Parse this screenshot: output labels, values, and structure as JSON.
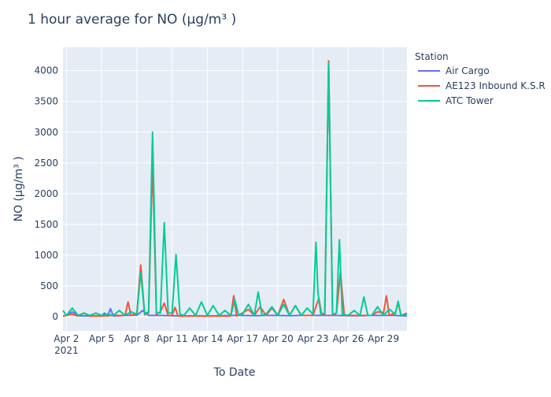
{
  "chart_data": {
    "type": "line",
    "title": "1 hour average for NO (µg/m³ )",
    "xlabel": "To Date",
    "ylabel": "NO (µg/m³ )",
    "legend": {
      "title": "Station",
      "position": "right"
    },
    "x_range": [
      "2021-04-01 17:00",
      "2021-05-01 00:00"
    ],
    "ylim": [
      -230,
      4380
    ],
    "grid": true,
    "x_ticks": [
      {
        "date": "2021-04-02",
        "label": "Apr 2",
        "sublabel": "2021"
      },
      {
        "date": "2021-04-05",
        "label": "Apr 5",
        "sublabel": ""
      },
      {
        "date": "2021-04-08",
        "label": "Apr 8",
        "sublabel": ""
      },
      {
        "date": "2021-04-11",
        "label": "Apr 11",
        "sublabel": ""
      },
      {
        "date": "2021-04-14",
        "label": "Apr 14",
        "sublabel": ""
      },
      {
        "date": "2021-04-17",
        "label": "Apr 17",
        "sublabel": ""
      },
      {
        "date": "2021-04-20",
        "label": "Apr 20",
        "sublabel": ""
      },
      {
        "date": "2021-04-23",
        "label": "Apr 23",
        "sublabel": ""
      },
      {
        "date": "2021-04-26",
        "label": "Apr 26",
        "sublabel": ""
      },
      {
        "date": "2021-04-29",
        "label": "Apr 29",
        "sublabel": ""
      }
    ],
    "y_ticks": [
      0,
      500,
      1000,
      1500,
      2000,
      2500,
      3000,
      3500,
      4000
    ],
    "series": [
      {
        "name": "Air Cargo",
        "color": "#636efa",
        "points": [
          [
            "2021-04-01 17:00",
            10
          ],
          [
            "2021-04-02 00:00",
            20
          ],
          [
            "2021-04-02 12:00",
            80
          ],
          [
            "2021-04-03 00:00",
            15
          ],
          [
            "2021-04-04 00:00",
            10
          ],
          [
            "2021-04-05 00:00",
            15
          ],
          [
            "2021-04-05 06:00",
            60
          ],
          [
            "2021-04-05 12:00",
            10
          ],
          [
            "2021-04-05 18:00",
            130
          ],
          [
            "2021-04-06 00:00",
            10
          ],
          [
            "2021-04-07 00:00",
            20
          ],
          [
            "2021-04-08 00:00",
            25
          ],
          [
            "2021-04-08 12:00",
            100
          ],
          [
            "2021-04-09 00:00",
            20
          ],
          [
            "2021-04-10 00:00",
            20
          ],
          [
            "2021-04-11 00:00",
            15
          ],
          [
            "2021-04-12 00:00",
            10
          ],
          [
            "2021-04-13 00:00",
            15
          ],
          [
            "2021-04-14 00:00",
            10
          ],
          [
            "2021-04-15 00:00",
            15
          ],
          [
            "2021-04-16 00:00",
            20
          ],
          [
            "2021-04-17 00:00",
            20
          ],
          [
            "2021-04-18 00:00",
            15
          ],
          [
            "2021-04-19 00:00",
            20
          ],
          [
            "2021-04-20 00:00",
            20
          ],
          [
            "2021-04-21 00:00",
            15
          ],
          [
            "2021-04-22 00:00",
            20
          ],
          [
            "2021-04-23 00:00",
            20
          ],
          [
            "2021-04-24 00:00",
            20
          ],
          [
            "2021-04-25 00:00",
            20
          ],
          [
            "2021-04-26 00:00",
            15
          ],
          [
            "2021-04-27 00:00",
            15
          ],
          [
            "2021-04-28 00:00",
            20
          ],
          [
            "2021-04-29 00:00",
            20
          ],
          [
            "2021-04-30 00:00",
            20
          ],
          [
            "2021-05-01 00:00",
            10
          ]
        ]
      },
      {
        "name": "AE123 Inbound K.S.R",
        "color": "#ef553b",
        "points": [
          [
            "2021-04-01 17:00",
            10
          ],
          [
            "2021-04-02 12:00",
            40
          ],
          [
            "2021-04-03 00:00",
            10
          ],
          [
            "2021-04-03 12:00",
            60
          ],
          [
            "2021-04-04 00:00",
            10
          ],
          [
            "2021-04-05 00:00",
            10
          ],
          [
            "2021-04-06 00:00",
            20
          ],
          [
            "2021-04-07 00:00",
            20
          ],
          [
            "2021-04-07 06:00",
            240
          ],
          [
            "2021-04-07 12:00",
            20
          ],
          [
            "2021-04-08 00:00",
            60
          ],
          [
            "2021-04-08 08:00",
            840
          ],
          [
            "2021-04-08 16:00",
            30
          ],
          [
            "2021-04-09 00:00",
            60
          ],
          [
            "2021-04-09 08:00",
            2550
          ],
          [
            "2021-04-09 16:00",
            40
          ],
          [
            "2021-04-10 00:00",
            80
          ],
          [
            "2021-04-10 08:00",
            220
          ],
          [
            "2021-04-10 16:00",
            20
          ],
          [
            "2021-04-11 00:00",
            20
          ],
          [
            "2021-04-11 06:00",
            150
          ],
          [
            "2021-04-11 12:00",
            10
          ],
          [
            "2021-04-12 00:00",
            10
          ],
          [
            "2021-04-13 00:00",
            10
          ],
          [
            "2021-04-14 00:00",
            10
          ],
          [
            "2021-04-15 00:00",
            10
          ],
          [
            "2021-04-16 00:00",
            10
          ],
          [
            "2021-04-16 06:00",
            340
          ],
          [
            "2021-04-16 12:00",
            10
          ],
          [
            "2021-04-17 00:00",
            60
          ],
          [
            "2021-04-17 12:00",
            120
          ],
          [
            "2021-04-18 00:00",
            20
          ],
          [
            "2021-04-18 12:00",
            160
          ],
          [
            "2021-04-19 00:00",
            20
          ],
          [
            "2021-04-19 12:00",
            140
          ],
          [
            "2021-04-20 00:00",
            20
          ],
          [
            "2021-04-20 12:00",
            280
          ],
          [
            "2021-04-21 00:00",
            20
          ],
          [
            "2021-04-21 12:00",
            180
          ],
          [
            "2021-04-22 00:00",
            20
          ],
          [
            "2021-04-23 00:00",
            20
          ],
          [
            "2021-04-23 12:00",
            300
          ],
          [
            "2021-04-23 18:00",
            20
          ],
          [
            "2021-04-24 00:00",
            40
          ],
          [
            "2021-04-24 08:00",
            4160
          ],
          [
            "2021-04-24 16:00",
            20
          ],
          [
            "2021-04-25 00:00",
            60
          ],
          [
            "2021-04-25 08:00",
            720
          ],
          [
            "2021-04-25 16:00",
            20
          ],
          [
            "2021-04-26 00:00",
            20
          ],
          [
            "2021-04-27 00:00",
            20
          ],
          [
            "2021-04-28 00:00",
            20
          ],
          [
            "2021-04-28 12:00",
            80
          ],
          [
            "2021-04-29 00:00",
            60
          ],
          [
            "2021-04-29 06:00",
            340
          ],
          [
            "2021-04-29 12:00",
            20
          ],
          [
            "2021-04-30 00:00",
            60
          ],
          [
            "2021-04-30 06:00",
            220
          ],
          [
            "2021-04-30 12:00",
            20
          ],
          [
            "2021-05-01 00:00",
            60
          ]
        ]
      },
      {
        "name": "ATC Tower",
        "color": "#00cc96",
        "points": [
          [
            "2021-04-01 17:00",
            100
          ],
          [
            "2021-04-02 00:00",
            20
          ],
          [
            "2021-04-02 06:00",
            80
          ],
          [
            "2021-04-02 12:00",
            140
          ],
          [
            "2021-04-03 00:00",
            20
          ],
          [
            "2021-04-03 12:00",
            60
          ],
          [
            "2021-04-04 00:00",
            20
          ],
          [
            "2021-04-04 12:00",
            60
          ],
          [
            "2021-04-05 00:00",
            20
          ],
          [
            "2021-04-05 12:00",
            40
          ],
          [
            "2021-04-06 00:00",
            20
          ],
          [
            "2021-04-06 12:00",
            100
          ],
          [
            "2021-04-07 00:00",
            20
          ],
          [
            "2021-04-07 12:00",
            80
          ],
          [
            "2021-04-08 00:00",
            40
          ],
          [
            "2021-04-08 08:00",
            720
          ],
          [
            "2021-04-08 16:00",
            40
          ],
          [
            "2021-04-09 00:00",
            80
          ],
          [
            "2021-04-09 08:00",
            3000
          ],
          [
            "2021-04-09 16:00",
            60
          ],
          [
            "2021-04-10 00:00",
            60
          ],
          [
            "2021-04-10 04:00",
            800
          ],
          [
            "2021-04-10 08:00",
            1530
          ],
          [
            "2021-04-10 16:00",
            60
          ],
          [
            "2021-04-11 00:00",
            60
          ],
          [
            "2021-04-11 08:00",
            1010
          ],
          [
            "2021-04-11 16:00",
            40
          ],
          [
            "2021-04-12 00:00",
            20
          ],
          [
            "2021-04-12 12:00",
            140
          ],
          [
            "2021-04-13 00:00",
            20
          ],
          [
            "2021-04-13 12:00",
            240
          ],
          [
            "2021-04-14 00:00",
            20
          ],
          [
            "2021-04-14 12:00",
            180
          ],
          [
            "2021-04-15 00:00",
            20
          ],
          [
            "2021-04-15 12:00",
            100
          ],
          [
            "2021-04-16 00:00",
            20
          ],
          [
            "2021-04-16 08:00",
            280
          ],
          [
            "2021-04-16 16:00",
            20
          ],
          [
            "2021-04-17 00:00",
            40
          ],
          [
            "2021-04-17 12:00",
            200
          ],
          [
            "2021-04-18 00:00",
            20
          ],
          [
            "2021-04-18 08:00",
            400
          ],
          [
            "2021-04-18 16:00",
            20
          ],
          [
            "2021-04-19 00:00",
            40
          ],
          [
            "2021-04-19 12:00",
            160
          ],
          [
            "2021-04-20 00:00",
            20
          ],
          [
            "2021-04-20 12:00",
            200
          ],
          [
            "2021-04-21 00:00",
            20
          ],
          [
            "2021-04-21 12:00",
            180
          ],
          [
            "2021-04-22 00:00",
            20
          ],
          [
            "2021-04-22 12:00",
            140
          ],
          [
            "2021-04-23 00:00",
            40
          ],
          [
            "2021-04-23 06:00",
            1210
          ],
          [
            "2021-04-23 10:00",
            400
          ],
          [
            "2021-04-23 16:00",
            40
          ],
          [
            "2021-04-24 00:00",
            60
          ],
          [
            "2021-04-24 08:00",
            4120
          ],
          [
            "2021-04-24 16:00",
            40
          ],
          [
            "2021-04-25 00:00",
            60
          ],
          [
            "2021-04-25 06:00",
            1250
          ],
          [
            "2021-04-25 12:00",
            40
          ],
          [
            "2021-04-26 00:00",
            20
          ],
          [
            "2021-04-26 12:00",
            100
          ],
          [
            "2021-04-27 00:00",
            20
          ],
          [
            "2021-04-27 08:00",
            320
          ],
          [
            "2021-04-27 16:00",
            20
          ],
          [
            "2021-04-28 00:00",
            20
          ],
          [
            "2021-04-28 12:00",
            160
          ],
          [
            "2021-04-29 00:00",
            20
          ],
          [
            "2021-04-29 12:00",
            120
          ],
          [
            "2021-04-30 00:00",
            40
          ],
          [
            "2021-04-30 06:00",
            250
          ],
          [
            "2021-04-30 12:00",
            20
          ],
          [
            "2021-05-01 00:00",
            40
          ]
        ]
      }
    ]
  }
}
